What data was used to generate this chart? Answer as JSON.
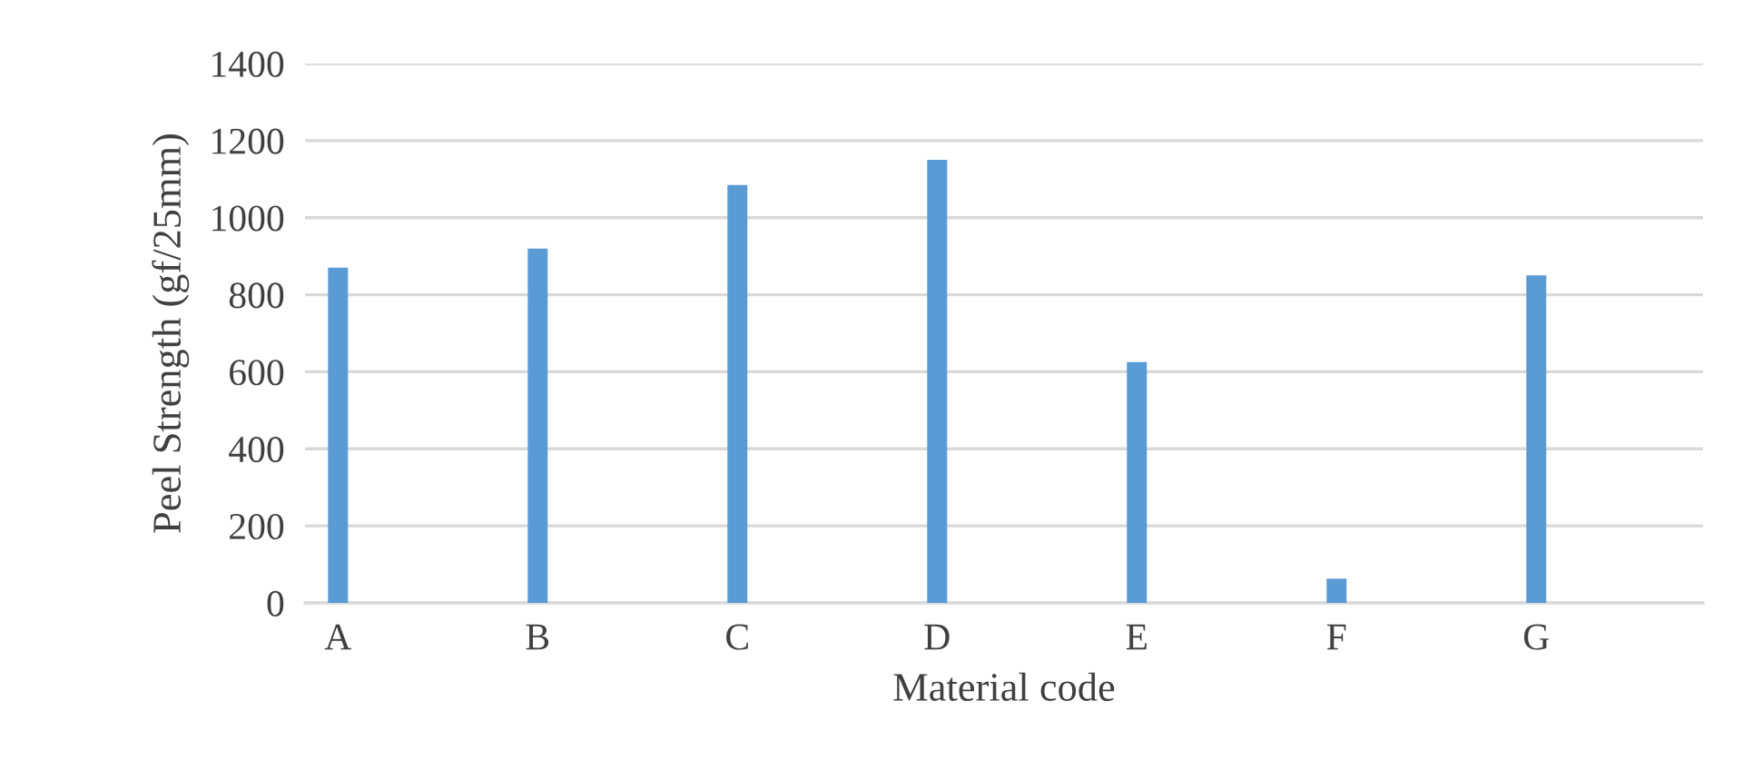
{
  "chart_data": {
    "type": "bar",
    "xlabel": "Material code",
    "ylabel": "Peel Strength (gf/25mm)",
    "categories": [
      "A",
      "B",
      "C",
      "D",
      "E",
      "F",
      "G"
    ],
    "values": [
      870,
      920,
      1085,
      1150,
      625,
      63,
      850
    ],
    "color": "#5b9bd5",
    "ylim": [
      0,
      1400
    ],
    "yticks": [
      0,
      200,
      400,
      600,
      800,
      1000,
      1200,
      1400
    ],
    "grid": "y"
  }
}
